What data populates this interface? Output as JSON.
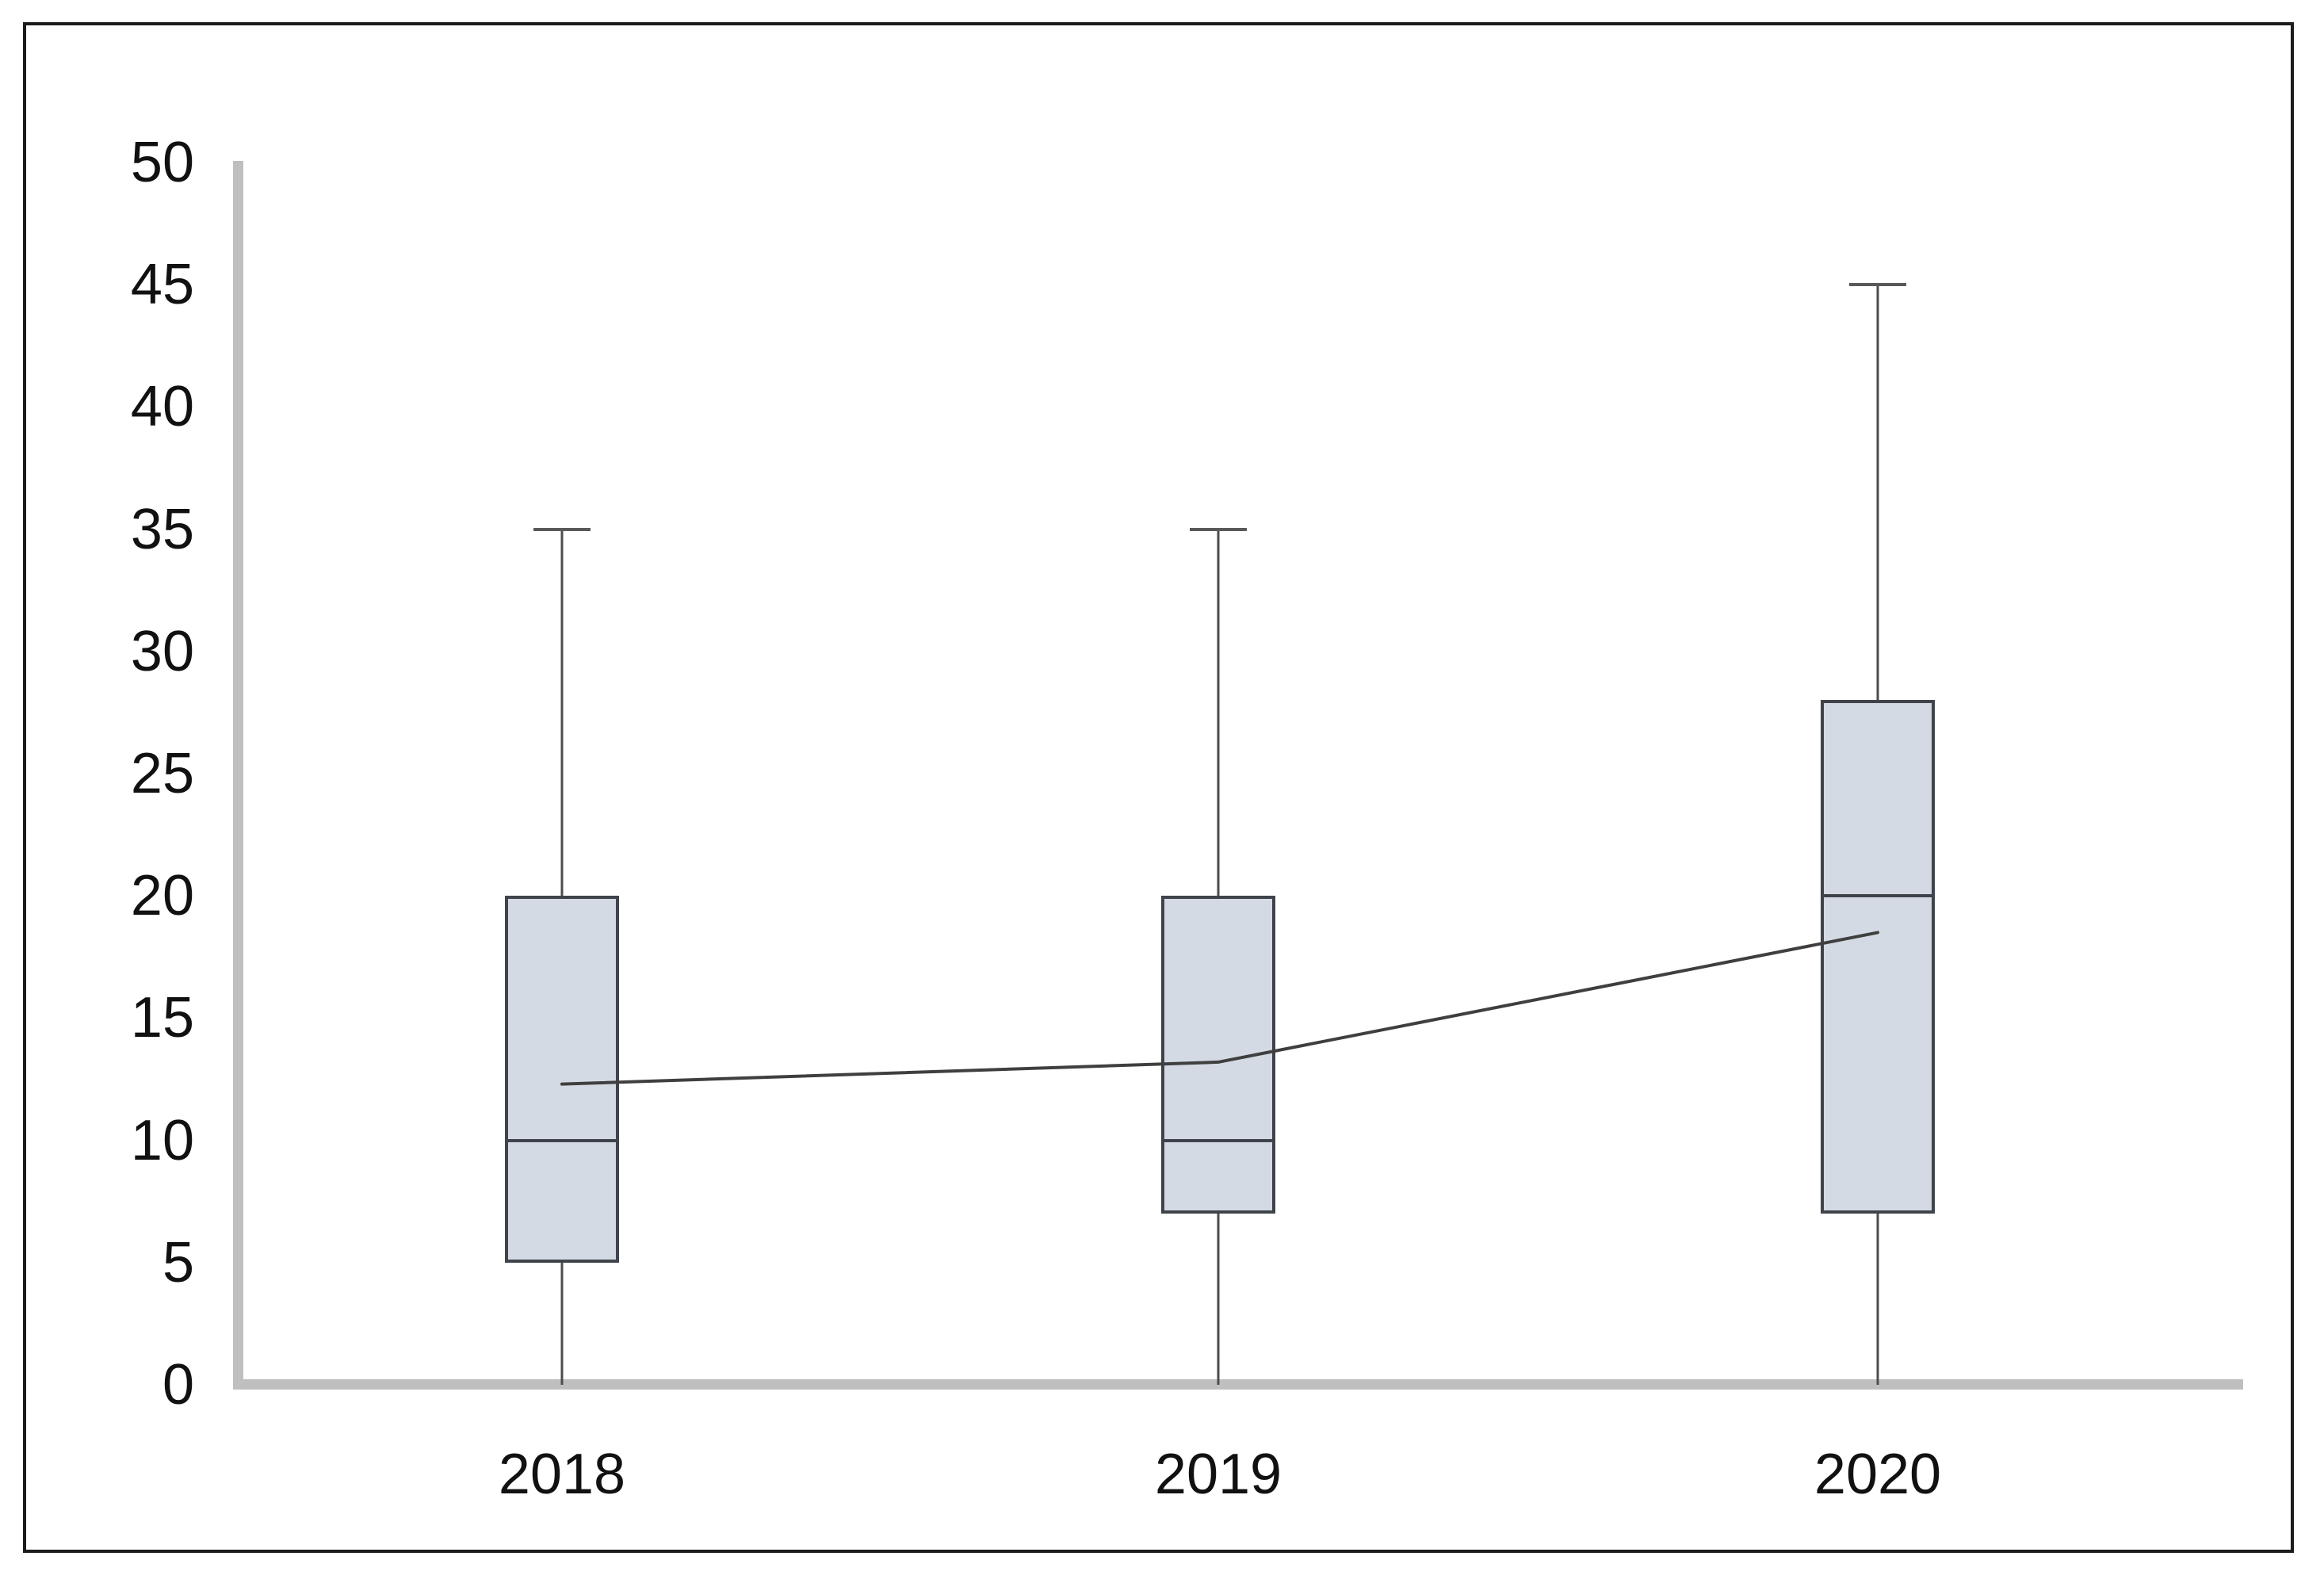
{
  "figure": {
    "background": "#ffffff",
    "border_color": "#1c1c1c"
  },
  "chart_data": {
    "type": "boxplot",
    "title": "",
    "xlabel": "",
    "ylabel": "",
    "categories": [
      "2018",
      "2019",
      "2020"
    ],
    "series": [
      {
        "name": "2018",
        "min": 0,
        "q1": 5,
        "median": 10,
        "q3": 20,
        "max": 35,
        "mean": 12.3
      },
      {
        "name": "2019",
        "min": 0,
        "q1": 7,
        "median": 10,
        "q3": 20,
        "max": 35,
        "mean": 13.2
      },
      {
        "name": "2020",
        "min": 0,
        "q1": 7,
        "median": 20,
        "q3": 28,
        "max": 45,
        "mean": 18.5
      }
    ],
    "mean_line_connects_series_means": true,
    "y_axis": {
      "min": 0,
      "max": 50,
      "step": 5,
      "tick_labels": [
        "0",
        "5",
        "10",
        "15",
        "20",
        "25",
        "30",
        "35",
        "40",
        "45",
        "50"
      ]
    },
    "grid": false,
    "legend": false,
    "colors": {
      "box_fill": "#d4dae3",
      "box_border": "#3f444b",
      "median": "#3f444b",
      "whisker": "#4d4d4d",
      "whisker_cap": "#595959",
      "mean_line": "#3f3f3f",
      "axis": "#bfbfbf",
      "text": "#111111"
    }
  }
}
